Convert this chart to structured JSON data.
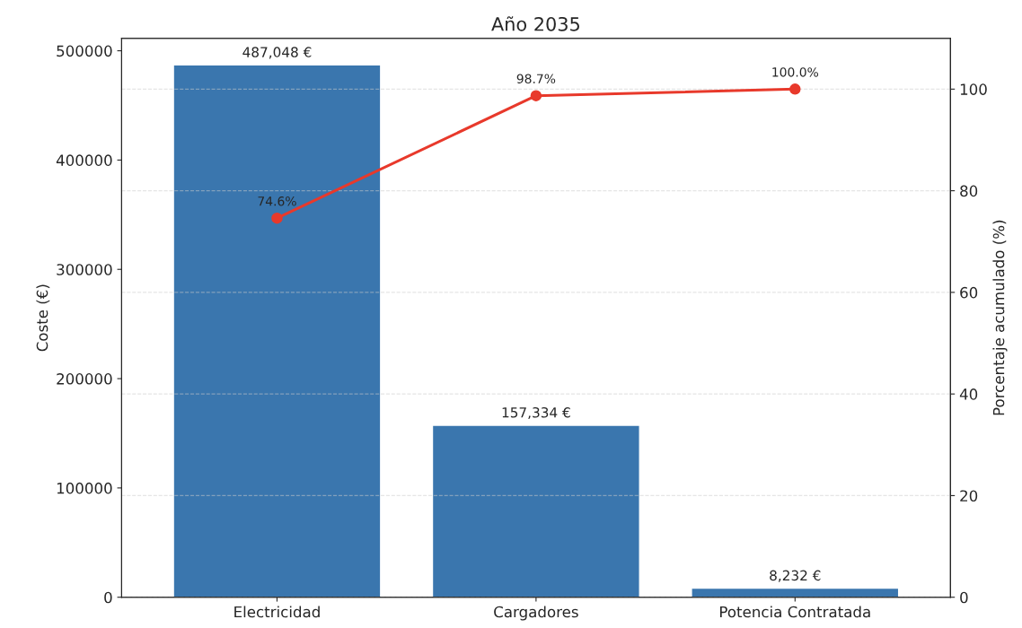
{
  "chart_data": {
    "type": "bar",
    "title": "Año 2035",
    "ylabel": "Coste (€)",
    "y2label": "Porcentaje acumulado (%)",
    "categories": [
      "Electricidad",
      "Cargadores",
      "Potencia Contratada"
    ],
    "series": [
      {
        "color": "#3a76ae",
        "values": [
          487048,
          157334,
          8232
        ],
        "value_labels": [
          "487,048 €",
          "157,334 €",
          "8,232 €"
        ]
      },
      {
        "type": "line",
        "axis": "y2",
        "color": "#e8392b",
        "marker": "circle",
        "values": [
          74.6,
          98.7,
          100.0
        ],
        "value_labels": [
          "74.6%",
          "98.7%",
          "100.0%"
        ]
      }
    ],
    "ylim": [
      0,
      511400
    ],
    "yticks": [
      0,
      100000,
      200000,
      300000,
      400000,
      500000
    ],
    "y2lim": [
      0,
      110
    ],
    "y2ticks": [
      0,
      20,
      40,
      60,
      80,
      100
    ],
    "grid": "y2",
    "legend": false
  }
}
